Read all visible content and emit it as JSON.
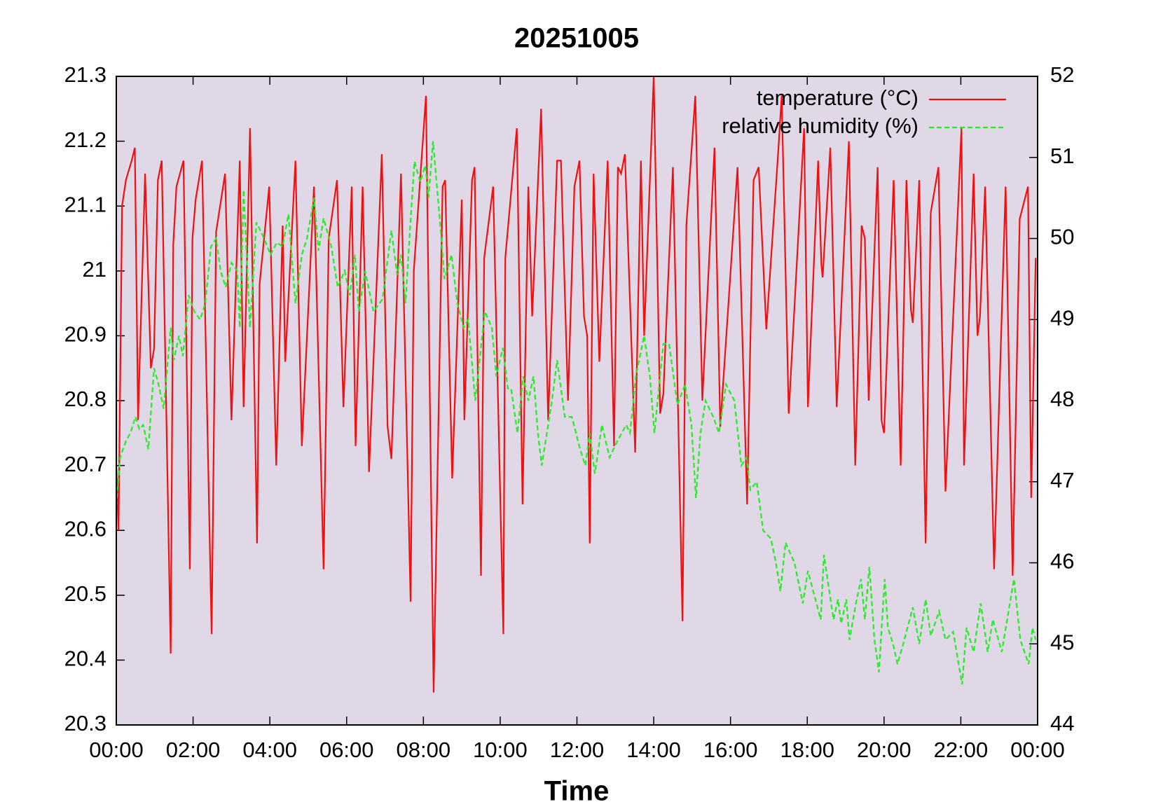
{
  "chart_data": {
    "type": "line",
    "title": "20251005",
    "x_label": "Time",
    "xlim": [
      0,
      1440
    ],
    "xticks": [
      {
        "value": 0,
        "label": "00:00"
      },
      {
        "value": 120,
        "label": "02:00"
      },
      {
        "value": 240,
        "label": "04:00"
      },
      {
        "value": 360,
        "label": "06:00"
      },
      {
        "value": 480,
        "label": "08:00"
      },
      {
        "value": 600,
        "label": "10:00"
      },
      {
        "value": 720,
        "label": "12:00"
      },
      {
        "value": 840,
        "label": "14:00"
      },
      {
        "value": 960,
        "label": "16:00"
      },
      {
        "value": 1080,
        "label": "18:00"
      },
      {
        "value": 1200,
        "label": "20:00"
      },
      {
        "value": 1320,
        "label": "22:00"
      },
      {
        "value": 1440,
        "label": "00:00"
      }
    ],
    "ylim": [
      20.3,
      21.3
    ],
    "yticks": [
      20.3,
      20.4,
      20.5,
      20.6,
      20.7,
      20.8,
      20.9,
      21,
      21.1,
      21.2,
      21.3
    ],
    "y2lim": [
      44,
      52
    ],
    "y2ticks": [
      44,
      45,
      46,
      47,
      48,
      49,
      50,
      51,
      52
    ],
    "legend": "upper right",
    "background": "#e0d8e6",
    "series": [
      {
        "name": "temperature (°C)",
        "color": "#ee1111",
        "dash": false,
        "x": [
          0,
          3.5,
          9,
          15,
          24,
          29,
          34,
          45,
          54,
          59,
          65,
          71,
          85,
          89,
          94,
          105,
          115,
          119,
          124,
          134,
          149,
          156,
          170,
          180,
          193,
          199,
          209,
          220,
          224,
          239,
          250,
          260,
          264,
          280,
          290,
          309,
          324,
          332,
          345,
          355,
          368,
          374,
          385,
          395,
          415,
          424,
          430,
          445,
          460,
          465,
          484,
          496,
          510,
          514,
          525,
          540,
          544,
          556,
          560,
          570,
          575,
          589,
          605,
          608,
          626,
          635,
          644,
          650,
          664,
          675,
          689,
          695,
          706,
          716,
          724,
          731,
          736,
          740,
          746,
          755,
          768,
          778,
          784,
          789,
          795,
          811,
          820,
          825,
          840,
          850,
          855,
          870,
          885,
          891,
          905,
          916,
          935,
          944,
          971,
          986,
          996,
          1004,
          1016,
          1035,
          1040,
          1051,
          1075,
          1081,
          1097,
          1102,
          1104,
          1116,
          1126,
          1145,
          1155,
          1165,
          1170,
          1176,
          1190,
          1196,
          1200,
          1215,
          1226,
          1235,
          1242,
          1245,
          1255,
          1265,
          1273,
          1285,
          1296,
          1321,
          1325,
          1340,
          1346,
          1350,
          1358,
          1372,
          1390,
          1401,
          1412,
          1425,
          1430,
          1437
        ],
        "values": [
          20.7,
          20.6,
          21.1,
          21.14,
          21.17,
          21.19,
          20.77,
          21.15,
          20.85,
          20.88,
          21.14,
          21.17,
          20.41,
          21.04,
          21.13,
          21.17,
          20.54,
          21.05,
          21.11,
          21.17,
          20.44,
          21.06,
          21.15,
          20.77,
          21.17,
          20.79,
          21.22,
          20.58,
          20.98,
          21.13,
          20.7,
          21.07,
          20.86,
          21.17,
          20.73,
          21.13,
          20.54,
          21.05,
          21.14,
          20.79,
          21.13,
          20.73,
          21.13,
          20.69,
          21.18,
          20.76,
          20.71,
          21.15,
          20.49,
          21.0,
          21.27,
          20.35,
          21.13,
          21.14,
          20.68,
          21.11,
          20.77,
          21.14,
          21.16,
          20.53,
          21.02,
          21.13,
          20.44,
          21.02,
          21.22,
          20.64,
          21.13,
          20.93,
          21.25,
          20.77,
          21.17,
          21.17,
          20.8,
          21.13,
          21.17,
          20.93,
          20.9,
          20.58,
          21.15,
          20.86,
          21.17,
          20.73,
          21.16,
          21.15,
          21.18,
          20.72,
          21.17,
          20.9,
          21.3,
          20.78,
          20.81,
          21.16,
          20.46,
          21.07,
          21.27,
          20.8,
          21.19,
          20.76,
          21.16,
          20.64,
          21.14,
          21.16,
          20.91,
          21.19,
          21.27,
          20.78,
          21.22,
          20.79,
          21.17,
          21.01,
          20.99,
          21.19,
          20.79,
          21.2,
          20.7,
          21.07,
          21.05,
          20.8,
          21.16,
          20.77,
          20.75,
          21.14,
          20.7,
          21.14,
          20.94,
          20.92,
          21.14,
          20.58,
          21.09,
          21.16,
          20.66,
          21.22,
          20.7,
          21.15,
          20.9,
          20.93,
          21.13,
          20.54,
          21.13,
          20.53,
          21.08,
          21.13,
          20.65,
          21.02
        ]
      },
      {
        "name": "relative humidity (%)",
        "color": "#22ee22",
        "dash": true,
        "axis": "y2",
        "x": [
          0,
          6,
          15,
          22,
          30,
          36,
          42,
          50,
          59,
          66,
          74,
          85,
          90,
          98,
          104,
          113,
          122,
          131,
          139,
          148,
          156,
          163,
          171,
          180,
          189,
          193,
          199,
          209,
          219,
          231,
          241,
          251,
          260,
          269,
          280,
          290,
          298,
          309,
          316,
          324,
          336,
          346,
          357,
          365,
          373,
          379,
          389,
          402,
          416,
          430,
          439,
          445,
          452,
          459,
          466,
          475,
          483,
          488,
          495,
          506,
          513,
          524,
          533,
          543,
          550,
          561,
          576,
          587,
          594,
          604,
          612,
          617,
          627,
          636,
          644,
          652,
          659,
          665,
          673,
          681,
          689,
          701,
          712,
          725,
          733,
          740,
          748,
          759,
          771,
          783,
          797,
          803,
          812,
          825,
          834,
          841,
          855,
          864,
          877,
          889,
          899,
          906,
          913,
          921,
          933,
          942,
          953,
          966,
          977,
          985,
          991,
          1001,
          1011,
          1023,
          1031,
          1038,
          1046,
          1060,
          1073,
          1081,
          1101,
          1106,
          1121,
          1128,
          1133,
          1141,
          1146,
          1156,
          1164,
          1170,
          1177,
          1185,
          1192,
          1201,
          1206,
          1214,
          1221,
          1230,
          1245,
          1255,
          1265,
          1273,
          1286,
          1296,
          1308,
          1322,
          1329,
          1340,
          1351,
          1362,
          1370,
          1384,
          1403,
          1413,
          1426,
          1432,
          1437
        ],
        "values": [
          46.7,
          47.3,
          47.5,
          47.6,
          47.8,
          47.65,
          47.7,
          47.4,
          48.4,
          48.2,
          47.9,
          48.9,
          48.5,
          48.8,
          48.55,
          49.3,
          49.1,
          49.0,
          49.2,
          49.9,
          50.0,
          49.6,
          49.4,
          49.7,
          49.6,
          48.9,
          50.6,
          48.9,
          50.2,
          50.0,
          49.8,
          49.95,
          49.9,
          50.3,
          49.2,
          49.8,
          50.0,
          50.5,
          49.85,
          50.25,
          49.9,
          49.4,
          49.6,
          49.3,
          49.8,
          49.1,
          49.6,
          49.1,
          49.25,
          50.1,
          49.55,
          49.8,
          49.2,
          50.1,
          50.95,
          50.7,
          50.9,
          50.5,
          51.2,
          50.2,
          49.5,
          49.8,
          49.2,
          48.9,
          49.0,
          48.0,
          49.1,
          48.9,
          48.3,
          48.65,
          48.15,
          48.15,
          47.6,
          48.3,
          48.0,
          48.3,
          47.6,
          47.2,
          47.6,
          48.0,
          48.5,
          47.8,
          47.8,
          47.4,
          47.2,
          47.6,
          47.1,
          47.7,
          47.3,
          47.5,
          47.7,
          47.6,
          48.3,
          48.8,
          48.3,
          47.6,
          48.7,
          48.7,
          47.95,
          48.2,
          47.7,
          46.8,
          47.6,
          48.0,
          47.8,
          47.6,
          48.2,
          48.0,
          47.2,
          47.3,
          46.9,
          47.0,
          46.4,
          46.3,
          46.0,
          45.65,
          46.25,
          46.0,
          45.5,
          45.9,
          45.3,
          46.1,
          45.3,
          45.55,
          45.25,
          45.55,
          45.05,
          45.5,
          45.8,
          45.3,
          45.95,
          45.05,
          44.65,
          45.8,
          45.2,
          45.0,
          44.75,
          45.0,
          45.45,
          45.0,
          45.55,
          45.1,
          45.4,
          45.05,
          45.15,
          44.5,
          45.2,
          44.9,
          45.5,
          44.9,
          45.3,
          44.9,
          45.8,
          45.05,
          44.75,
          45.2,
          45.05
        ]
      }
    ]
  }
}
